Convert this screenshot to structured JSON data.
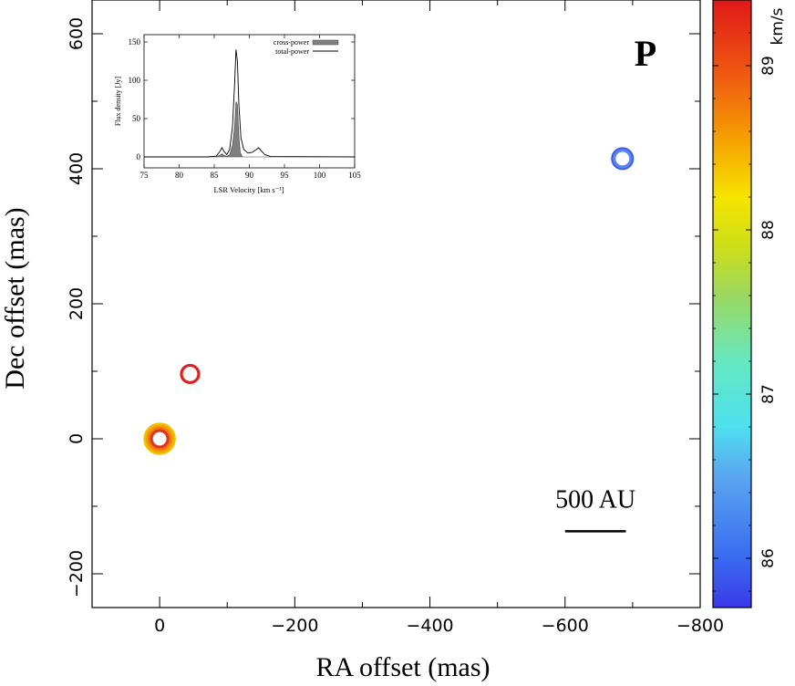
{
  "chart_data": [
    {
      "type": "scatter",
      "panel_label": "P",
      "xlabel": "RA offset (mas)",
      "ylabel": "Dec offset (mas)",
      "xlim": [
        100,
        -800
      ],
      "ylim": [
        -250,
        650
      ],
      "xticks": [
        0,
        -200,
        -400,
        -600,
        -800
      ],
      "xtick_labels": [
        "0",
        "−200",
        "−400",
        "−600",
        "−800"
      ],
      "yticks": [
        -200,
        0,
        200,
        400,
        600
      ],
      "ytick_labels": [
        "−200",
        "0",
        "200",
        "400",
        "600"
      ],
      "scale_bar": {
        "label": "500 AU",
        "ra_from": -600,
        "ra_to": -690,
        "dec": -137
      },
      "maser_spots": [
        {
          "ra": 0,
          "dec": 0,
          "velocity": 88.1,
          "size": 1.7,
          "color": "#f2c200"
        },
        {
          "ra": 0,
          "dec": 0,
          "velocity": 88.3,
          "size": 1.45,
          "color": "#f5a000"
        },
        {
          "ra": 0,
          "dec": 0,
          "velocity": 88.6,
          "size": 1.2,
          "color": "#f07818"
        },
        {
          "ra": 0,
          "dec": 0,
          "velocity": 89.0,
          "size": 0.95,
          "color": "#e03818"
        },
        {
          "ra": -45,
          "dec": 96,
          "velocity": 89.2,
          "size": 1.0,
          "color": "#e02020"
        },
        {
          "ra": -685,
          "dec": 415,
          "velocity": 86.0,
          "size": 1.15,
          "color": "#3a5ee0"
        },
        {
          "ra": -685,
          "dec": 415,
          "velocity": 85.9,
          "size": 0.95,
          "color": "#5a84f0"
        }
      ]
    },
    {
      "type": "line",
      "xlabel": "LSR Velocity [km s⁻¹]",
      "ylabel": "Flux density [Jy]",
      "xlim": [
        75,
        105
      ],
      "ylim": [
        0,
        150
      ],
      "xticks": [
        75,
        80,
        85,
        90,
        95,
        100,
        105
      ],
      "yticks": [
        0,
        50,
        100,
        150
      ],
      "legend_position": "top-right",
      "series": [
        {
          "name": "total-power",
          "style": "line",
          "x": [
            75,
            84,
            85.3,
            85.8,
            86.1,
            86.4,
            86.8,
            87.2,
            87.6,
            87.9,
            88.1,
            88.3,
            88.5,
            88.8,
            89.2,
            89.8,
            90.4,
            90.9,
            91.3,
            91.7,
            92.2,
            93,
            105
          ],
          "y": [
            0,
            0,
            1,
            7,
            12,
            7,
            3,
            10,
            40,
            95,
            140,
            125,
            70,
            25,
            10,
            5,
            6,
            9,
            12,
            8,
            3,
            0.5,
            0
          ]
        },
        {
          "name": "cross-power",
          "style": "filled",
          "x": [
            75,
            85.3,
            85.8,
            86.1,
            86.4,
            86.8,
            87.2,
            87.6,
            87.9,
            88.1,
            88.3,
            88.5,
            88.7,
            89.0,
            105
          ],
          "y": [
            0,
            0,
            2,
            4,
            2,
            0.5,
            3,
            15,
            40,
            72,
            68,
            28,
            6,
            0,
            0
          ]
        }
      ]
    }
  ],
  "colorbar": {
    "label": "km/s",
    "range": [
      85.7,
      89.4
    ],
    "ticks": [
      86,
      87,
      88,
      89
    ],
    "tick_labels": [
      "86",
      "87",
      "88",
      "89"
    ],
    "stops": [
      {
        "v": 85.7,
        "color": "#3a3ae8"
      },
      {
        "v": 86.0,
        "color": "#3a6af0"
      },
      {
        "v": 86.5,
        "color": "#5aa6f0"
      },
      {
        "v": 86.8,
        "color": "#4ee0f0"
      },
      {
        "v": 87.2,
        "color": "#66e8c0"
      },
      {
        "v": 87.6,
        "color": "#9ad860"
      },
      {
        "v": 87.9,
        "color": "#cede18"
      },
      {
        "v": 88.2,
        "color": "#f6e400"
      },
      {
        "v": 88.5,
        "color": "#f6aa00"
      },
      {
        "v": 88.9,
        "color": "#f06010"
      },
      {
        "v": 89.4,
        "color": "#e01818"
      }
    ]
  }
}
